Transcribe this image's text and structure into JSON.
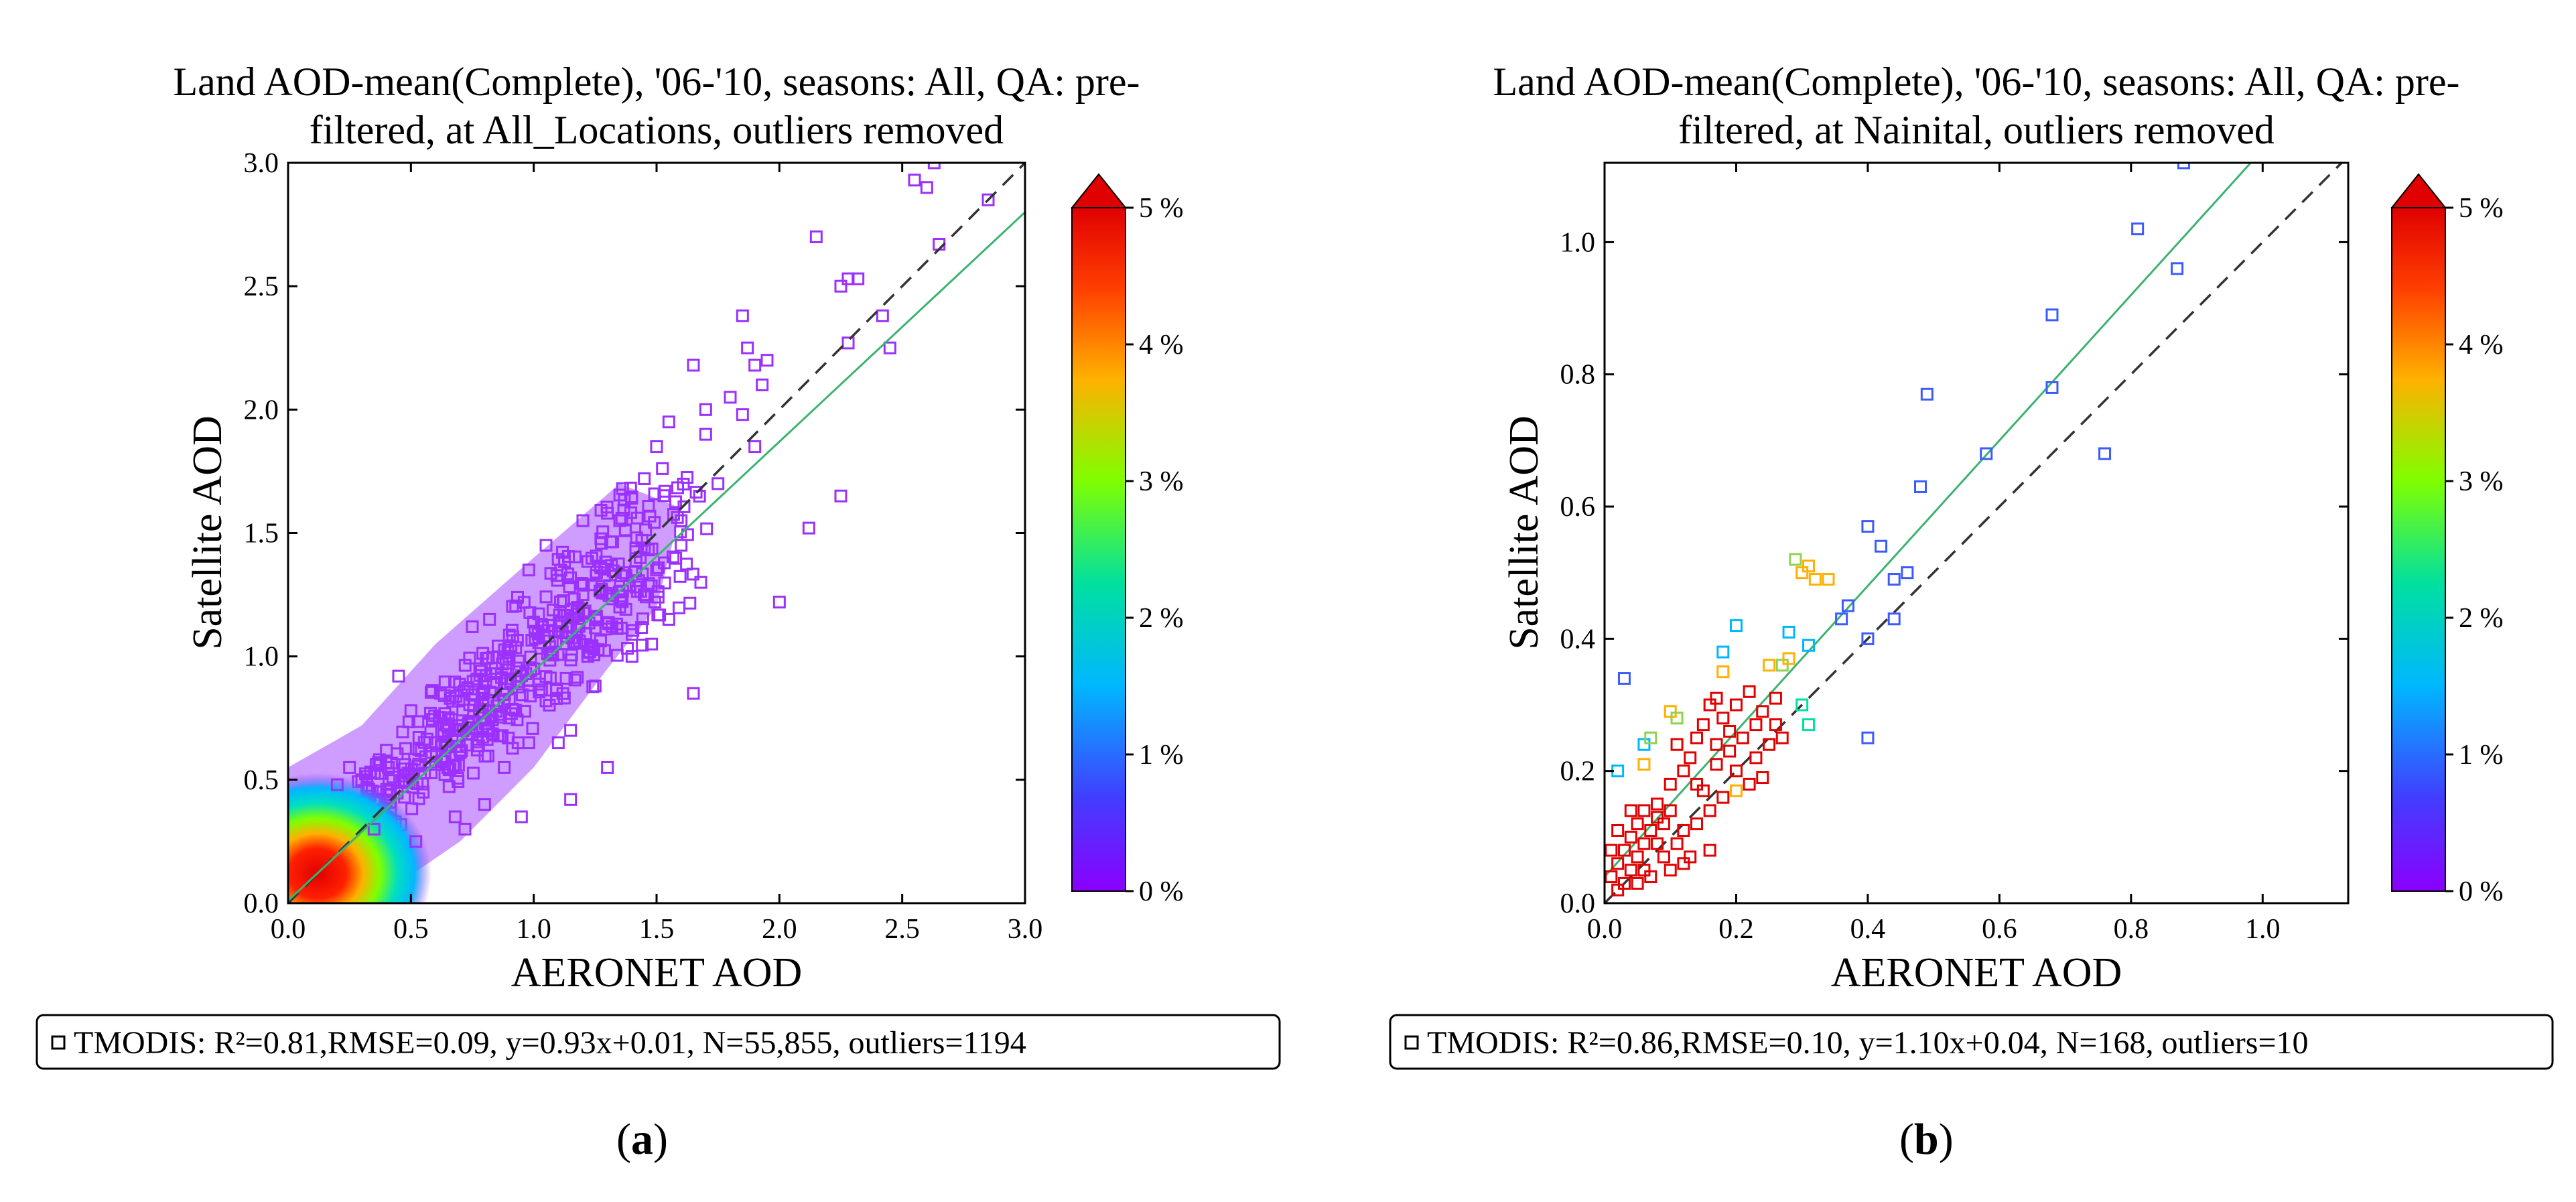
{
  "colors": {
    "scatter_left": "#9b30ff",
    "fit_line": "#3cb371",
    "one_to_one": "#333333",
    "colormap": [
      "#8b00ff",
      "#4040ff",
      "#00b7ff",
      "#00e0a0",
      "#7fff00",
      "#ffb000",
      "#ff4000",
      "#e00000"
    ]
  },
  "chart_data": [
    {
      "panel": "(a)",
      "type": "scatter",
      "title_line1": "Land AOD-mean(Complete), '06-'10, seasons: All, QA: pre-",
      "title_line2": "filtered, at All_Locations, outliers removed",
      "xlabel": "AERONET AOD",
      "ylabel": "Satellite AOD",
      "xlim": [
        0,
        3.0
      ],
      "ylim": [
        0,
        3.0
      ],
      "xticks": [
        "0.0",
        "0.5",
        "1.0",
        "1.5",
        "2.0",
        "2.5",
        "3.0"
      ],
      "yticks": [
        "0.0",
        "0.5",
        "1.0",
        "1.5",
        "2.0",
        "2.5",
        "3.0"
      ],
      "fit": {
        "slope": 0.93,
        "intercept": 0.01
      },
      "colorbar_ticks": [
        "0 %",
        "1 %",
        "2 %",
        "3 %",
        "4 %",
        "5 %"
      ],
      "legend": "TMODIS: R²=0.81,RMSE=0.09, y=0.93x+0.01, N=55,855, outliers=1194",
      "points": [
        [
          2.63,
          3.0
        ],
        [
          2.55,
          2.93
        ],
        [
          2.6,
          2.9
        ],
        [
          2.85,
          2.85
        ],
        [
          2.65,
          2.67
        ],
        [
          2.15,
          2.7
        ],
        [
          2.25,
          2.5
        ],
        [
          2.28,
          2.53
        ],
        [
          2.32,
          2.53
        ],
        [
          2.42,
          2.38
        ],
        [
          2.45,
          2.25
        ],
        [
          2.28,
          2.27
        ],
        [
          2.25,
          1.65
        ],
        [
          2.12,
          1.52
        ],
        [
          2.0,
          1.22
        ],
        [
          1.85,
          2.38
        ],
        [
          1.87,
          2.25
        ],
        [
          1.9,
          2.18
        ],
        [
          1.93,
          2.1
        ],
        [
          1.95,
          2.2
        ],
        [
          1.65,
          2.18
        ],
        [
          1.7,
          2.0
        ],
        [
          1.8,
          2.05
        ],
        [
          1.85,
          1.98
        ],
        [
          1.9,
          1.85
        ],
        [
          1.7,
          1.9
        ],
        [
          1.55,
          1.95
        ],
        [
          1.5,
          1.85
        ],
        [
          1.45,
          1.72
        ],
        [
          1.6,
          1.55
        ],
        [
          1.65,
          0.85
        ],
        [
          1.75,
          1.7
        ],
        [
          1.68,
          1.3
        ],
        [
          1.55,
          1.15
        ],
        [
          1.48,
          1.05
        ],
        [
          1.35,
          1.55
        ],
        [
          1.3,
          1.58
        ],
        [
          1.2,
          1.55
        ],
        [
          1.05,
          1.45
        ],
        [
          0.98,
          1.35
        ],
        [
          0.82,
          1.15
        ],
        [
          0.75,
          1.12
        ],
        [
          1.1,
          0.65
        ],
        [
          1.15,
          0.7
        ],
        [
          1.4,
          1.0
        ],
        [
          1.2,
          1.25
        ],
        [
          1.0,
          0.95
        ],
        [
          0.9,
          1.0
        ],
        [
          0.85,
          0.8
        ],
        [
          0.7,
          0.72
        ],
        [
          0.8,
          0.4
        ],
        [
          0.72,
          0.3
        ],
        [
          0.65,
          0.55
        ],
        [
          0.5,
          0.78
        ],
        [
          0.45,
          0.92
        ],
        [
          0.4,
          0.62
        ],
        [
          0.3,
          0.5
        ],
        [
          0.35,
          0.3
        ],
        [
          1.15,
          0.42
        ],
        [
          1.3,
          0.55
        ],
        [
          0.95,
          0.35
        ],
        [
          1.25,
          0.88
        ],
        [
          1.5,
          1.35
        ],
        [
          1.1,
          1.1
        ],
        [
          0.6,
          0.65
        ],
        [
          0.55,
          0.45
        ],
        [
          0.25,
          0.55
        ],
        [
          0.2,
          0.48
        ],
        [
          0.9,
          0.75
        ],
        [
          1.35,
          1.2
        ],
        [
          0.78,
          0.95
        ],
        [
          0.62,
          0.85
        ],
        [
          1.05,
          0.82
        ],
        [
          1.45,
          1.25
        ],
        [
          1.6,
          1.45
        ],
        [
          0.88,
          0.55
        ],
        [
          0.98,
          0.65
        ],
        [
          0.68,
          0.35
        ],
        [
          0.52,
          0.25
        ],
        [
          1.22,
          1.0
        ]
      ]
    },
    {
      "panel": "(b)",
      "type": "scatter",
      "title_line1": "Land AOD-mean(Complete), '06-'10, seasons: All, QA: pre-",
      "title_line2": "filtered, at Nainital, outliers removed",
      "xlabel": "AERONET AOD",
      "ylabel": "Satellite AOD",
      "xlim": [
        0,
        1.13
      ],
      "ylim": [
        0,
        1.12
      ],
      "xticks": [
        "0.0",
        "0.2",
        "0.4",
        "0.6",
        "0.8",
        "1.0"
      ],
      "yticks": [
        "0.0",
        "0.2",
        "0.4",
        "0.6",
        "0.8",
        "1.0"
      ],
      "fit": {
        "slope": 1.1,
        "intercept": 0.04
      },
      "colorbar_ticks": [
        "0 %",
        "1 %",
        "2 %",
        "3 %",
        "4 %",
        "5 %"
      ],
      "legend": "TMODIS: R²=0.86,RMSE=0.10, y=1.10x+0.04, N=168, outliers=10",
      "points": [
        {
          "x": 0.88,
          "y": 1.12,
          "c": "#3c5bff"
        },
        {
          "x": 0.81,
          "y": 1.02,
          "c": "#3c5bff"
        },
        {
          "x": 0.87,
          "y": 0.96,
          "c": "#3c5bff"
        },
        {
          "x": 0.68,
          "y": 0.89,
          "c": "#3c5bff"
        },
        {
          "x": 0.68,
          "y": 0.78,
          "c": "#3c5bff"
        },
        {
          "x": 0.49,
          "y": 0.77,
          "c": "#3c5bff"
        },
        {
          "x": 0.58,
          "y": 0.68,
          "c": "#3c5bff"
        },
        {
          "x": 0.76,
          "y": 0.68,
          "c": "#3c5bff"
        },
        {
          "x": 0.48,
          "y": 0.63,
          "c": "#3c5bff"
        },
        {
          "x": 0.4,
          "y": 0.57,
          "c": "#3c5bff"
        },
        {
          "x": 0.42,
          "y": 0.54,
          "c": "#3c5bff"
        },
        {
          "x": 0.44,
          "y": 0.49,
          "c": "#3c5bff"
        },
        {
          "x": 0.46,
          "y": 0.5,
          "c": "#3c5bff"
        },
        {
          "x": 0.37,
          "y": 0.45,
          "c": "#3c5bff"
        },
        {
          "x": 0.44,
          "y": 0.43,
          "c": "#3c5bff"
        },
        {
          "x": 0.36,
          "y": 0.43,
          "c": "#3c5bff"
        },
        {
          "x": 0.4,
          "y": 0.4,
          "c": "#3c5bff"
        },
        {
          "x": 0.4,
          "y": 0.25,
          "c": "#3c5bff"
        },
        {
          "x": 0.03,
          "y": 0.34,
          "c": "#3c5bff"
        },
        {
          "x": 0.2,
          "y": 0.42,
          "c": "#00b7ff"
        },
        {
          "x": 0.28,
          "y": 0.41,
          "c": "#00b7ff"
        },
        {
          "x": 0.31,
          "y": 0.39,
          "c": "#00b7ff"
        },
        {
          "x": 0.18,
          "y": 0.38,
          "c": "#00b7ff"
        },
        {
          "x": 0.02,
          "y": 0.2,
          "c": "#00b7ff"
        },
        {
          "x": 0.06,
          "y": 0.24,
          "c": "#00b7ff"
        },
        {
          "x": 0.29,
          "y": 0.52,
          "c": "#8fd24f"
        },
        {
          "x": 0.31,
          "y": 0.51,
          "c": "#ffb000"
        },
        {
          "x": 0.3,
          "y": 0.5,
          "c": "#ffb000"
        },
        {
          "x": 0.32,
          "y": 0.49,
          "c": "#ffb000"
        },
        {
          "x": 0.34,
          "y": 0.49,
          "c": "#ffb000"
        },
        {
          "x": 0.25,
          "y": 0.36,
          "c": "#ffb000"
        },
        {
          "x": 0.27,
          "y": 0.36,
          "c": "#8fd24f"
        },
        {
          "x": 0.28,
          "y": 0.37,
          "c": "#ffb000"
        },
        {
          "x": 0.18,
          "y": 0.35,
          "c": "#ffb000"
        },
        {
          "x": 0.3,
          "y": 0.3,
          "c": "#00e0a0"
        },
        {
          "x": 0.31,
          "y": 0.27,
          "c": "#00e0a0"
        },
        {
          "x": 0.1,
          "y": 0.29,
          "c": "#ffb000"
        },
        {
          "x": 0.11,
          "y": 0.28,
          "c": "#8fd24f"
        },
        {
          "x": 0.07,
          "y": 0.25,
          "c": "#8fd24f"
        },
        {
          "x": 0.06,
          "y": 0.21,
          "c": "#ffb000"
        },
        {
          "x": 0.2,
          "y": 0.17,
          "c": "#ffb000"
        },
        {
          "x": 0.16,
          "y": 0.3,
          "c": "#e00000"
        },
        {
          "x": 0.17,
          "y": 0.31,
          "c": "#e00000"
        },
        {
          "x": 0.18,
          "y": 0.28,
          "c": "#e00000"
        },
        {
          "x": 0.2,
          "y": 0.3,
          "c": "#e00000"
        },
        {
          "x": 0.22,
          "y": 0.32,
          "c": "#e00000"
        },
        {
          "x": 0.24,
          "y": 0.29,
          "c": "#e00000"
        },
        {
          "x": 0.26,
          "y": 0.31,
          "c": "#e00000"
        },
        {
          "x": 0.26,
          "y": 0.27,
          "c": "#e00000"
        },
        {
          "x": 0.25,
          "y": 0.24,
          "c": "#e00000"
        },
        {
          "x": 0.27,
          "y": 0.25,
          "c": "#e00000"
        },
        {
          "x": 0.23,
          "y": 0.22,
          "c": "#e00000"
        },
        {
          "x": 0.21,
          "y": 0.25,
          "c": "#e00000"
        },
        {
          "x": 0.19,
          "y": 0.23,
          "c": "#e00000"
        },
        {
          "x": 0.17,
          "y": 0.21,
          "c": "#e00000"
        },
        {
          "x": 0.15,
          "y": 0.27,
          "c": "#e00000"
        },
        {
          "x": 0.14,
          "y": 0.25,
          "c": "#e00000"
        },
        {
          "x": 0.13,
          "y": 0.22,
          "c": "#e00000"
        },
        {
          "x": 0.12,
          "y": 0.2,
          "c": "#e00000"
        },
        {
          "x": 0.1,
          "y": 0.18,
          "c": "#e00000"
        },
        {
          "x": 0.15,
          "y": 0.17,
          "c": "#e00000"
        },
        {
          "x": 0.18,
          "y": 0.16,
          "c": "#e00000"
        },
        {
          "x": 0.2,
          "y": 0.2,
          "c": "#e00000"
        },
        {
          "x": 0.22,
          "y": 0.18,
          "c": "#e00000"
        },
        {
          "x": 0.16,
          "y": 0.14,
          "c": "#e00000"
        },
        {
          "x": 0.14,
          "y": 0.12,
          "c": "#e00000"
        },
        {
          "x": 0.12,
          "y": 0.11,
          "c": "#e00000"
        },
        {
          "x": 0.1,
          "y": 0.14,
          "c": "#e00000"
        },
        {
          "x": 0.08,
          "y": 0.15,
          "c": "#e00000"
        },
        {
          "x": 0.06,
          "y": 0.14,
          "c": "#e00000"
        },
        {
          "x": 0.05,
          "y": 0.12,
          "c": "#e00000"
        },
        {
          "x": 0.04,
          "y": 0.1,
          "c": "#e00000"
        },
        {
          "x": 0.03,
          "y": 0.08,
          "c": "#e00000"
        },
        {
          "x": 0.02,
          "y": 0.06,
          "c": "#e00000"
        },
        {
          "x": 0.01,
          "y": 0.04,
          "c": "#e00000"
        },
        {
          "x": 0.02,
          "y": 0.02,
          "c": "#e00000"
        },
        {
          "x": 0.03,
          "y": 0.03,
          "c": "#e00000"
        },
        {
          "x": 0.04,
          "y": 0.05,
          "c": "#e00000"
        },
        {
          "x": 0.05,
          "y": 0.07,
          "c": "#e00000"
        },
        {
          "x": 0.06,
          "y": 0.09,
          "c": "#e00000"
        },
        {
          "x": 0.07,
          "y": 0.11,
          "c": "#e00000"
        },
        {
          "x": 0.08,
          "y": 0.09,
          "c": "#e00000"
        },
        {
          "x": 0.09,
          "y": 0.07,
          "c": "#e00000"
        },
        {
          "x": 0.1,
          "y": 0.05,
          "c": "#e00000"
        },
        {
          "x": 0.07,
          "y": 0.04,
          "c": "#e00000"
        },
        {
          "x": 0.05,
          "y": 0.03,
          "c": "#e00000"
        },
        {
          "x": 0.04,
          "y": 0.14,
          "c": "#e00000"
        },
        {
          "x": 0.08,
          "y": 0.13,
          "c": "#e00000"
        },
        {
          "x": 0.11,
          "y": 0.09,
          "c": "#e00000"
        },
        {
          "x": 0.13,
          "y": 0.07,
          "c": "#e00000"
        },
        {
          "x": 0.12,
          "y": 0.06,
          "c": "#e00000"
        },
        {
          "x": 0.16,
          "y": 0.08,
          "c": "#e00000"
        },
        {
          "x": 0.24,
          "y": 0.19,
          "c": "#e00000"
        },
        {
          "x": 0.19,
          "y": 0.26,
          "c": "#e00000"
        },
        {
          "x": 0.23,
          "y": 0.27,
          "c": "#e00000"
        },
        {
          "x": 0.11,
          "y": 0.24,
          "c": "#e00000"
        },
        {
          "x": 0.09,
          "y": 0.12,
          "c": "#e00000"
        },
        {
          "x": 0.01,
          "y": 0.08,
          "c": "#e00000"
        },
        {
          "x": 0.02,
          "y": 0.11,
          "c": "#e00000"
        },
        {
          "x": 0.06,
          "y": 0.05,
          "c": "#e00000"
        },
        {
          "x": 0.14,
          "y": 0.18,
          "c": "#e00000"
        },
        {
          "x": 0.17,
          "y": 0.24,
          "c": "#e00000"
        }
      ]
    }
  ]
}
